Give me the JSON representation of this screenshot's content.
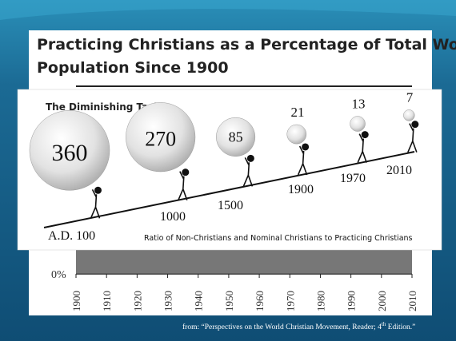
{
  "slide": {
    "title_lines": [
      "Practicing Christians as a Percentage of Total World",
      "Population Since 1900"
    ],
    "chart": {
      "y_label": "0%",
      "x_labels": [
        "1900",
        "1910",
        "1920",
        "1930",
        "1940",
        "1950",
        "1960",
        "1970",
        "1980",
        "1990",
        "2000",
        "2010"
      ]
    },
    "overlay": {
      "title": "The Diminishing Task",
      "items": [
        {
          "label": "A.D. 100",
          "value": 360
        },
        {
          "label": "1000",
          "value": 270
        },
        {
          "label": "1500",
          "value": 85
        },
        {
          "label": "1900",
          "value": 21
        },
        {
          "label": "1970",
          "value": 13
        },
        {
          "label": "2010",
          "value": 7
        }
      ],
      "caption": "Ratio of Non-Christians and Nominal Christians to Practicing Christians"
    },
    "footer": {
      "before": "from: “Perspectives on the World Christian Movement, Reader; 4",
      "sup": "th",
      "after": " Edition.”"
    }
  }
}
